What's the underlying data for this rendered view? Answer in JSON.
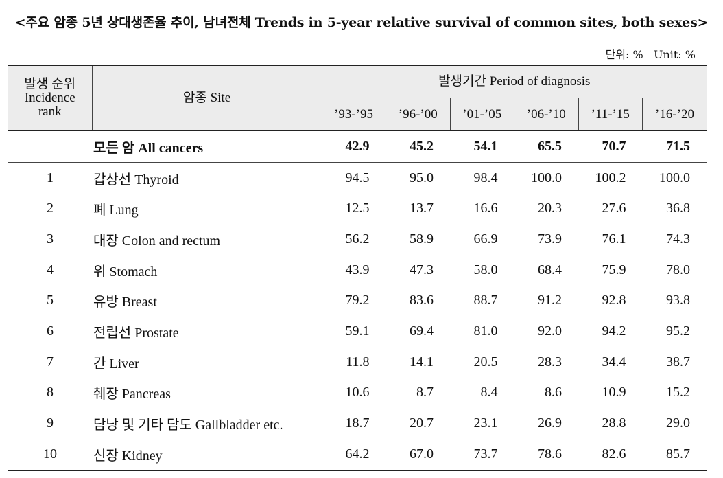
{
  "title": "<주요 암종 5년 상대생존율 추이, 남녀전체 Trends in 5-year relative survival of common sites, both sexes>",
  "unit": "단위: %   Unit: %",
  "header": {
    "rank": "발생 순위\nIncidence\nrank",
    "site": "암종 Site",
    "period": "발생기간 Period of diagnosis",
    "periods": [
      "’93-’95",
      "’96-’00",
      "’01-’05",
      "’06-’10",
      "’11-’15",
      "’16-’20"
    ]
  },
  "total_row": {
    "rank": "",
    "site": "모든 암 All cancers",
    "values": [
      "42.9",
      "45.2",
      "54.1",
      "65.5",
      "70.7",
      "71.5"
    ]
  },
  "rows": [
    {
      "rank": "1",
      "site": "갑상선 Thyroid",
      "values": [
        "94.5",
        "95.0",
        "98.4",
        "100.0",
        "100.2",
        "100.0"
      ]
    },
    {
      "rank": "2",
      "site": "폐 Lung",
      "values": [
        "12.5",
        "13.7",
        "16.6",
        "20.3",
        "27.6",
        "36.8"
      ]
    },
    {
      "rank": "3",
      "site": "대장 Colon and rectum",
      "values": [
        "56.2",
        "58.9",
        "66.9",
        "73.9",
        "76.1",
        "74.3"
      ]
    },
    {
      "rank": "4",
      "site": "위 Stomach",
      "values": [
        "43.9",
        "47.3",
        "58.0",
        "68.4",
        "75.9",
        "78.0"
      ]
    },
    {
      "rank": "5",
      "site": "유방 Breast",
      "values": [
        "79.2",
        "83.6",
        "88.7",
        "91.2",
        "92.8",
        "93.8"
      ]
    },
    {
      "rank": "6",
      "site": "전립선 Prostate",
      "values": [
        "59.1",
        "69.4",
        "81.0",
        "92.0",
        "94.2",
        "95.2"
      ]
    },
    {
      "rank": "7",
      "site": "간 Liver",
      "values": [
        "11.8",
        "14.1",
        "20.5",
        "28.3",
        "34.4",
        "38.7"
      ]
    },
    {
      "rank": "8",
      "site": "췌장 Pancreas",
      "values": [
        "10.6",
        "8.7",
        "8.4",
        "8.6",
        "10.9",
        "15.2"
      ]
    },
    {
      "rank": "9",
      "site": "담낭 및 기타 담도 Gallbladder etc.",
      "values": [
        "18.7",
        "20.7",
        "23.1",
        "26.9",
        "28.8",
        "29.0"
      ]
    },
    {
      "rank": "10",
      "site": "신장 Kidney",
      "values": [
        "64.2",
        "67.0",
        "73.7",
        "78.6",
        "82.6",
        "85.7"
      ]
    }
  ]
}
